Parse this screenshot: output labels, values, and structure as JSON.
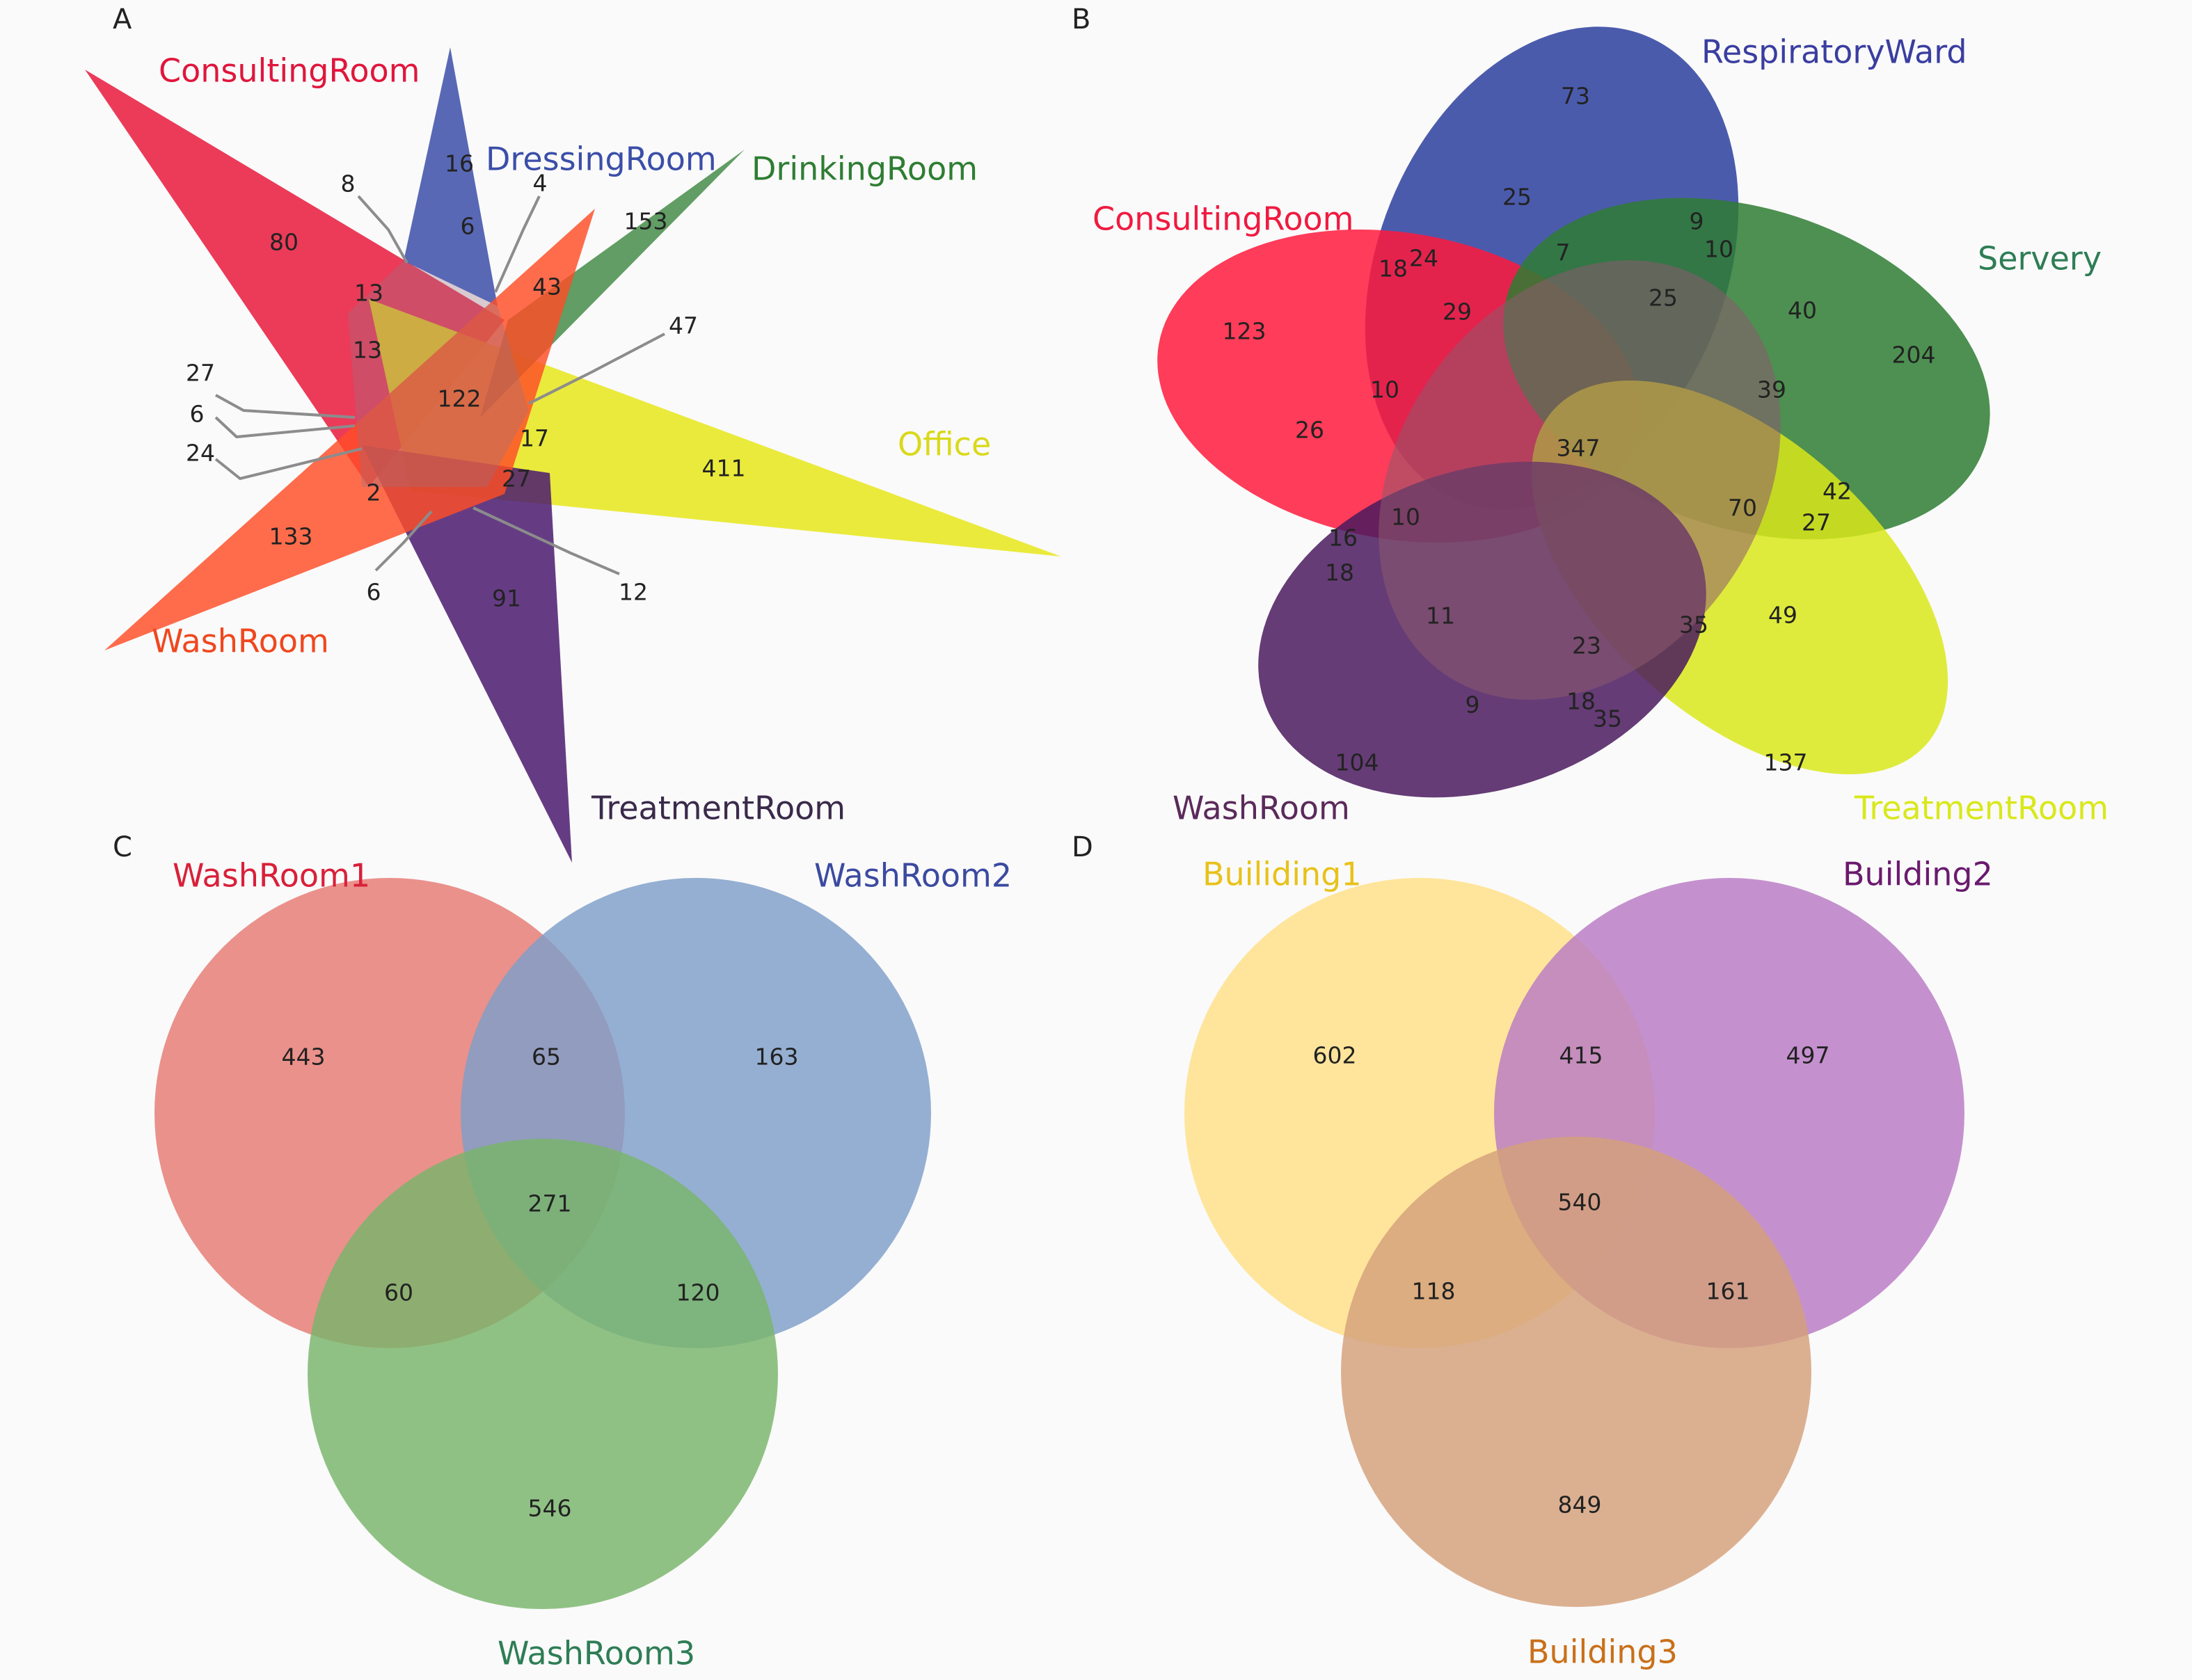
{
  "panels": {
    "A": {
      "letter": "A",
      "sets": [
        {
          "name": "ConsultingRoom",
          "color": "#e8193c"
        },
        {
          "name": "DressingRoom",
          "color": "#3b4ea8"
        },
        {
          "name": "DrinkingRoom",
          "color": "#2e7d32"
        },
        {
          "name": "Office",
          "color": "#e6e61a"
        },
        {
          "name": "TreatmentRoom",
          "color": "#4a1a6e"
        },
        {
          "name": "WashRoom",
          "color": "#ff4d26"
        }
      ],
      "numbers": [
        "80",
        "16",
        "6",
        "153",
        "13",
        "43",
        "13",
        "122",
        "17",
        "411",
        "2",
        "27",
        "133",
        "91"
      ],
      "callouts": [
        "8",
        "4",
        "47",
        "27",
        "6",
        "24",
        "6",
        "12"
      ]
    },
    "B": {
      "letter": "B",
      "sets": [
        {
          "name": "RespiratoryWard",
          "color": "#2c3e9e"
        },
        {
          "name": "ConsultingRoom",
          "color": "#ff1a3c"
        },
        {
          "name": "Servery",
          "color": "#2e7d32"
        },
        {
          "name": "WashRoom",
          "color": "#4a1a5e"
        },
        {
          "name": "TreatmentRoom",
          "color": "#d9e81a"
        }
      ],
      "numbers": [
        "73",
        "25",
        "9",
        "10",
        "18",
        "24",
        "7",
        "25",
        "40",
        "123",
        "29",
        "204",
        "10",
        "39",
        "26",
        "347",
        "42",
        "10",
        "70",
        "27",
        "16",
        "18",
        "11",
        "35",
        "49",
        "23",
        "9",
        "18",
        "35",
        "104",
        "137"
      ]
    },
    "C": {
      "letter": "C",
      "sets": [
        {
          "name": "WashRoom1",
          "color": "#e67a73"
        },
        {
          "name": "WashRoom2",
          "color": "#7f9fc9"
        },
        {
          "name": "WashRoom3",
          "color": "#79b56a"
        }
      ],
      "numbers": [
        "443",
        "65",
        "163",
        "271",
        "60",
        "120",
        "546"
      ]
    },
    "D": {
      "letter": "D",
      "sets": [
        {
          "name": "Builiding1",
          "color": "#ffe08a"
        },
        {
          "name": "Building2",
          "color": "#b87ac4"
        },
        {
          "name": "Building3",
          "color": "#d4a07a"
        }
      ],
      "numbers": [
        "602",
        "415",
        "497",
        "540",
        "118",
        "161",
        "849"
      ]
    }
  }
}
